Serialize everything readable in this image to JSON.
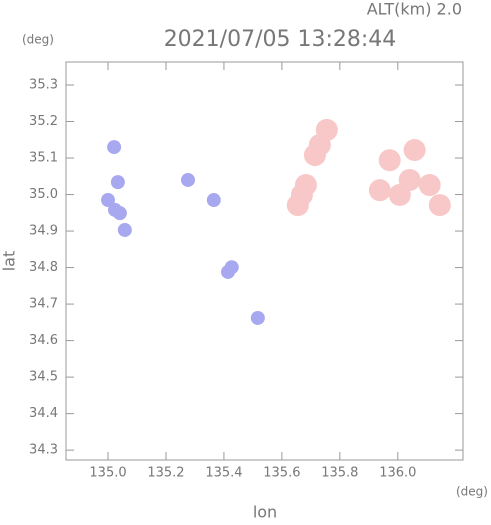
{
  "chart_data": {
    "type": "scatter",
    "title": "2021/07/05 13:28:44",
    "subtitle": "ALT(km) 2.0",
    "x_label": "lon",
    "y_label": "lat",
    "x_unit": "(deg)",
    "y_unit": "(deg)",
    "xlim": [
      134.855,
      136.225
    ],
    "ylim": [
      34.273,
      35.363
    ],
    "xticks": [
      {
        "value": 135.0,
        "label": "135.0"
      },
      135.2,
      135.4,
      135.6,
      135.8,
      {
        "value": 136.0,
        "label": "136.0"
      }
    ],
    "yticks": [
      35.3,
      35.2,
      35.1,
      {
        "value": 35.0,
        "label": "35.0"
      },
      34.9,
      34.8,
      34.7,
      34.6,
      34.5,
      34.4,
      34.3
    ],
    "series": [
      {
        "color": "#a8a8f0",
        "x": [
          135.0,
          135.024,
          135.041,
          135.058,
          135.034,
          135.021,
          135.276,
          135.365,
          135.427,
          135.414,
          135.517
        ],
        "y": [
          34.985,
          34.958,
          34.949,
          34.903,
          35.034,
          35.13,
          35.04,
          34.985,
          34.801,
          34.788,
          34.662
        ]
      },
      {
        "color": "#f8c8c8",
        "x": [
          135.669,
          135.655,
          135.683,
          135.731,
          135.714,
          135.755,
          135.972,
          136.041,
          135.938,
          136.11,
          136.145,
          136.007,
          136.058
        ],
        "y": [
          34.999,
          34.971,
          35.026,
          35.136,
          35.108,
          35.177,
          35.094,
          35.04,
          35.012,
          35.026,
          34.971,
          34.999,
          35.122
        ]
      }
    ]
  }
}
